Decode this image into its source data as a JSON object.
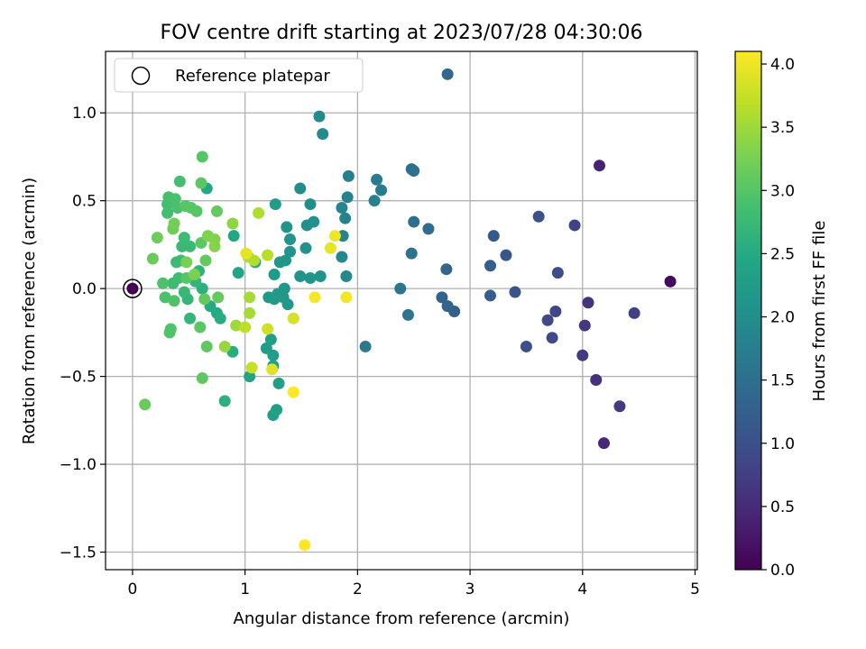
{
  "chart_data": {
    "type": "scatter",
    "title": "FOV centre drift starting at 2023/07/28 04:30:06",
    "xlabel": "Angular distance from reference (arcmin)",
    "ylabel": "Rotation from reference (arcmin)",
    "xlim": [
      -0.24,
      5.02
    ],
    "ylim": [
      -1.6,
      1.35
    ],
    "x_ticks": [
      0,
      1,
      2,
      3,
      4,
      5
    ],
    "x_tick_labels": [
      "0",
      "1",
      "2",
      "3",
      "4",
      "5"
    ],
    "y_ticks": [
      -1.5,
      -1.0,
      -0.5,
      0.0,
      0.5,
      1.0
    ],
    "y_tick_labels": [
      "−1.5",
      "−1.0",
      "−0.5",
      "0.0",
      "0.5",
      "1.0"
    ],
    "grid": true,
    "legend": {
      "position": "top-left",
      "entries": [
        "Reference platepar"
      ]
    },
    "reference_point": {
      "x": 0.0,
      "y": 0.0
    },
    "colorbar": {
      "label": "Hours from first FF file",
      "colormap": "viridis",
      "range": [
        0.0,
        4.1
      ],
      "ticks": [
        0.0,
        0.5,
        1.0,
        1.5,
        2.0,
        2.5,
        3.0,
        3.5,
        4.0
      ],
      "tick_labels": [
        "0.0",
        "0.5",
        "1.0",
        "1.5",
        "2.0",
        "2.5",
        "3.0",
        "3.5",
        "4.0"
      ]
    },
    "points": [
      {
        "x": 0.0,
        "y": 0.0,
        "h": 0.0
      },
      {
        "x": 4.78,
        "y": 0.04,
        "h": 0.1
      },
      {
        "x": 4.15,
        "y": 0.7,
        "h": 0.4
      },
      {
        "x": 4.19,
        "y": -0.88,
        "h": 0.45
      },
      {
        "x": 4.12,
        "y": -0.52,
        "h": 0.55
      },
      {
        "x": 4.05,
        "y": -0.08,
        "h": 0.6
      },
      {
        "x": 4.02,
        "y": -0.21,
        "h": 0.65
      },
      {
        "x": 4.0,
        "y": -0.38,
        "h": 0.7
      },
      {
        "x": 4.33,
        "y": -0.67,
        "h": 0.7
      },
      {
        "x": 4.46,
        "y": -0.14,
        "h": 0.75
      },
      {
        "x": 3.93,
        "y": 0.36,
        "h": 0.8
      },
      {
        "x": 3.76,
        "y": -0.13,
        "h": 0.85
      },
      {
        "x": 3.73,
        "y": -0.28,
        "h": 0.88
      },
      {
        "x": 3.69,
        "y": -0.18,
        "h": 0.9
      },
      {
        "x": 3.78,
        "y": 0.09,
        "h": 0.95
      },
      {
        "x": 3.61,
        "y": 0.41,
        "h": 1.0
      },
      {
        "x": 3.5,
        "y": -0.33,
        "h": 1.0
      },
      {
        "x": 3.4,
        "y": -0.02,
        "h": 1.05
      },
      {
        "x": 3.32,
        "y": 0.19,
        "h": 1.1
      },
      {
        "x": 3.21,
        "y": 0.3,
        "h": 1.15
      },
      {
        "x": 3.18,
        "y": 0.13,
        "h": 1.2
      },
      {
        "x": 3.18,
        "y": -0.04,
        "h": 1.2
      },
      {
        "x": 2.86,
        "y": -0.13,
        "h": 1.25
      },
      {
        "x": 2.8,
        "y": -0.1,
        "h": 1.3
      },
      {
        "x": 2.75,
        "y": -0.05,
        "h": 1.3
      },
      {
        "x": 2.79,
        "y": 0.11,
        "h": 1.35
      },
      {
        "x": 2.8,
        "y": 1.22,
        "h": 1.4
      },
      {
        "x": 2.63,
        "y": 0.34,
        "h": 1.45
      },
      {
        "x": 2.5,
        "y": 0.38,
        "h": 1.5
      },
      {
        "x": 2.48,
        "y": 0.68,
        "h": 1.5
      },
      {
        "x": 2.5,
        "y": 0.67,
        "h": 1.52
      },
      {
        "x": 2.48,
        "y": 0.2,
        "h": 1.55
      },
      {
        "x": 2.45,
        "y": -0.15,
        "h": 1.6
      },
      {
        "x": 2.38,
        "y": 0.0,
        "h": 1.6
      },
      {
        "x": 2.07,
        "y": -0.33,
        "h": 1.65
      },
      {
        "x": 2.21,
        "y": 0.56,
        "h": 1.7
      },
      {
        "x": 2.17,
        "y": 0.62,
        "h": 1.7
      },
      {
        "x": 2.15,
        "y": 0.5,
        "h": 1.75
      },
      {
        "x": 1.92,
        "y": 0.64,
        "h": 1.75
      },
      {
        "x": 1.91,
        "y": 0.52,
        "h": 1.8
      },
      {
        "x": 1.89,
        "y": 0.4,
        "h": 1.8
      },
      {
        "x": 1.86,
        "y": 0.46,
        "h": 1.85
      },
      {
        "x": 1.87,
        "y": 0.3,
        "h": 1.85
      },
      {
        "x": 1.86,
        "y": 0.18,
        "h": 1.9
      },
      {
        "x": 1.9,
        "y": 0.07,
        "h": 1.9
      },
      {
        "x": 1.66,
        "y": 0.98,
        "h": 1.95
      },
      {
        "x": 1.69,
        "y": 0.88,
        "h": 1.95
      },
      {
        "x": 1.49,
        "y": 0.57,
        "h": 2.0
      },
      {
        "x": 1.58,
        "y": 0.48,
        "h": 2.0
      },
      {
        "x": 1.61,
        "y": 0.38,
        "h": 2.05
      },
      {
        "x": 1.55,
        "y": 0.36,
        "h": 2.05
      },
      {
        "x": 1.54,
        "y": 0.23,
        "h": 2.08
      },
      {
        "x": 1.67,
        "y": 0.07,
        "h": 2.08
      },
      {
        "x": 1.58,
        "y": 0.06,
        "h": 2.1
      },
      {
        "x": 1.49,
        "y": 0.07,
        "h": 2.1
      },
      {
        "x": 1.4,
        "y": 0.21,
        "h": 2.1
      },
      {
        "x": 1.4,
        "y": 0.28,
        "h": 2.12
      },
      {
        "x": 1.37,
        "y": 0.35,
        "h": 2.12
      },
      {
        "x": 1.36,
        "y": 0.16,
        "h": 2.15
      },
      {
        "x": 1.31,
        "y": 0.15,
        "h": 2.15
      },
      {
        "x": 1.35,
        "y": 0.0,
        "h": 2.15
      },
      {
        "x": 1.34,
        "y": -0.05,
        "h": 2.18
      },
      {
        "x": 1.38,
        "y": -0.09,
        "h": 2.18
      },
      {
        "x": 1.29,
        "y": -0.03,
        "h": 2.2
      },
      {
        "x": 1.21,
        "y": -0.05,
        "h": 2.2
      },
      {
        "x": 1.26,
        "y": -0.06,
        "h": 2.22
      },
      {
        "x": 1.26,
        "y": 0.08,
        "h": 2.22
      },
      {
        "x": 1.27,
        "y": 0.48,
        "h": 2.25
      },
      {
        "x": 1.19,
        "y": -0.34,
        "h": 2.25
      },
      {
        "x": 1.23,
        "y": -0.29,
        "h": 2.28
      },
      {
        "x": 1.25,
        "y": -0.38,
        "h": 2.28
      },
      {
        "x": 1.3,
        "y": -0.54,
        "h": 2.3
      },
      {
        "x": 1.25,
        "y": -0.44,
        "h": 2.3
      },
      {
        "x": 1.28,
        "y": -0.69,
        "h": 2.32
      },
      {
        "x": 1.25,
        "y": -0.72,
        "h": 2.32
      },
      {
        "x": 1.04,
        "y": -0.5,
        "h": 2.35
      },
      {
        "x": 1.09,
        "y": 0.15,
        "h": 2.35
      },
      {
        "x": 0.94,
        "y": 0.09,
        "h": 2.4
      },
      {
        "x": 0.9,
        "y": 0.3,
        "h": 2.45
      },
      {
        "x": 0.66,
        "y": 0.57,
        "h": 2.45
      },
      {
        "x": 0.69,
        "y": -0.1,
        "h": 2.5
      },
      {
        "x": 0.75,
        "y": -0.14,
        "h": 2.5
      },
      {
        "x": 0.78,
        "y": -0.17,
        "h": 2.55
      },
      {
        "x": 0.89,
        "y": -0.36,
        "h": 2.55
      },
      {
        "x": 0.82,
        "y": -0.64,
        "h": 2.6
      },
      {
        "x": 0.62,
        "y": 0.0,
        "h": 2.6
      },
      {
        "x": 0.59,
        "y": 0.1,
        "h": 2.65
      },
      {
        "x": 0.56,
        "y": 0.04,
        "h": 2.65
      },
      {
        "x": 0.49,
        "y": -0.06,
        "h": 2.7
      },
      {
        "x": 0.51,
        "y": -0.17,
        "h": 2.7
      },
      {
        "x": 0.46,
        "y": -0.02,
        "h": 2.72
      },
      {
        "x": 0.44,
        "y": 0.24,
        "h": 2.75
      },
      {
        "x": 0.51,
        "y": 0.24,
        "h": 2.75
      },
      {
        "x": 0.46,
        "y": 0.29,
        "h": 2.78
      },
      {
        "x": 0.43,
        "y": 0.16,
        "h": 2.78
      },
      {
        "x": 0.39,
        "y": 0.15,
        "h": 2.8
      },
      {
        "x": 0.36,
        "y": 0.03,
        "h": 2.8
      },
      {
        "x": 0.41,
        "y": 0.06,
        "h": 2.82
      },
      {
        "x": 0.31,
        "y": 0.43,
        "h": 2.85
      },
      {
        "x": 0.31,
        "y": 0.48,
        "h": 2.85
      },
      {
        "x": 0.32,
        "y": 0.52,
        "h": 2.88
      },
      {
        "x": 0.42,
        "y": 0.61,
        "h": 2.88
      },
      {
        "x": 0.38,
        "y": 0.51,
        "h": 2.9
      },
      {
        "x": 0.4,
        "y": 0.46,
        "h": 2.9
      },
      {
        "x": 0.27,
        "y": 0.03,
        "h": 2.92
      },
      {
        "x": 0.29,
        "y": -0.05,
        "h": 2.92
      },
      {
        "x": 0.34,
        "y": -0.23,
        "h": 2.95
      },
      {
        "x": 0.33,
        "y": -0.25,
        "h": 2.95
      },
      {
        "x": 0.37,
        "y": -0.07,
        "h": 2.95
      },
      {
        "x": 0.48,
        "y": 0.06,
        "h": 3.0
      },
      {
        "x": 0.47,
        "y": 0.47,
        "h": 3.0
      },
      {
        "x": 0.52,
        "y": 0.46,
        "h": 3.0
      },
      {
        "x": 0.57,
        "y": 0.44,
        "h": 3.0
      },
      {
        "x": 0.62,
        "y": 0.75,
        "h": 3.0
      },
      {
        "x": 0.61,
        "y": 0.6,
        "h": 3.05
      },
      {
        "x": 0.61,
        "y": 0.26,
        "h": 3.05
      },
      {
        "x": 0.6,
        "y": -0.22,
        "h": 3.05
      },
      {
        "x": 0.62,
        "y": -0.51,
        "h": 3.08
      },
      {
        "x": 0.66,
        "y": -0.33,
        "h": 3.08
      },
      {
        "x": 0.65,
        "y": 0.16,
        "h": 3.1
      },
      {
        "x": 0.64,
        "y": -0.06,
        "h": 3.1
      },
      {
        "x": 0.75,
        "y": 0.44,
        "h": 3.12
      },
      {
        "x": 0.76,
        "y": -0.05,
        "h": 3.12
      },
      {
        "x": 0.11,
        "y": -0.66,
        "h": 3.15
      },
      {
        "x": 0.18,
        "y": 0.17,
        "h": 3.15
      },
      {
        "x": 0.22,
        "y": 0.29,
        "h": 3.18
      },
      {
        "x": 0.36,
        "y": 0.34,
        "h": 3.2
      },
      {
        "x": 0.37,
        "y": 0.37,
        "h": 3.22
      },
      {
        "x": 0.48,
        "y": 0.15,
        "h": 3.25
      },
      {
        "x": 0.55,
        "y": 0.08,
        "h": 3.28
      },
      {
        "x": 0.67,
        "y": 0.3,
        "h": 3.3
      },
      {
        "x": 0.73,
        "y": 0.28,
        "h": 3.32
      },
      {
        "x": 0.73,
        "y": 0.24,
        "h": 3.35
      },
      {
        "x": 0.89,
        "y": 0.37,
        "h": 3.4
      },
      {
        "x": 0.82,
        "y": -0.33,
        "h": 3.45
      },
      {
        "x": 0.92,
        "y": -0.21,
        "h": 3.5
      },
      {
        "x": 1.04,
        "y": -0.05,
        "h": 3.55
      },
      {
        "x": 1.04,
        "y": -0.14,
        "h": 3.55
      },
      {
        "x": 1.12,
        "y": 0.43,
        "h": 3.6
      },
      {
        "x": 1.03,
        "y": 0.18,
        "h": 3.6
      },
      {
        "x": 1.08,
        "y": 0.16,
        "h": 3.62
      },
      {
        "x": 1.2,
        "y": 0.19,
        "h": 3.65
      },
      {
        "x": 1.0,
        "y": -0.22,
        "h": 3.7
      },
      {
        "x": 1.06,
        "y": -0.45,
        "h": 3.75
      },
      {
        "x": 1.2,
        "y": -0.23,
        "h": 3.8
      },
      {
        "x": 1.43,
        "y": -0.17,
        "h": 3.85
      },
      {
        "x": 1.24,
        "y": -0.46,
        "h": 3.9
      },
      {
        "x": 1.76,
        "y": 0.23,
        "h": 3.95
      },
      {
        "x": 1.01,
        "y": 0.2,
        "h": 3.95
      },
      {
        "x": 1.8,
        "y": 0.3,
        "h": 4.0
      },
      {
        "x": 1.62,
        "y": -0.05,
        "h": 4.05
      },
      {
        "x": 1.9,
        "y": -0.05,
        "h": 4.05
      },
      {
        "x": 1.43,
        "y": -0.59,
        "h": 4.1
      },
      {
        "x": 1.53,
        "y": -1.46,
        "h": 4.1
      }
    ]
  }
}
